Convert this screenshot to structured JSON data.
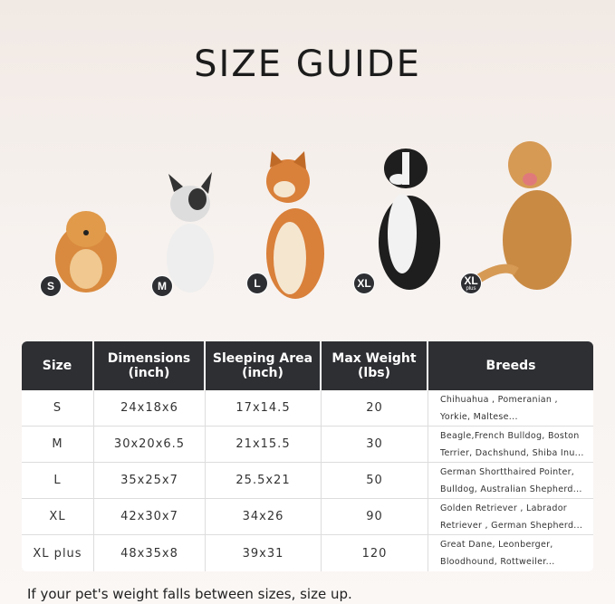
{
  "title": "SIZE GUIDE",
  "badges": [
    {
      "label": "S"
    },
    {
      "label": "M"
    },
    {
      "label": "L"
    },
    {
      "label": "XL"
    },
    {
      "label": "XL",
      "sub": "plus"
    }
  ],
  "table": {
    "headers": [
      {
        "l1": "Size",
        "l2": ""
      },
      {
        "l1": "Dimensions",
        "l2": "(inch)"
      },
      {
        "l1": "Sleeping Area",
        "l2": "(inch)"
      },
      {
        "l1": "Max Weight",
        "l2": "(lbs)"
      },
      {
        "l1": "Breeds",
        "l2": ""
      }
    ],
    "rows": [
      {
        "size": "S",
        "dim": "24x18x6",
        "area": "17x14.5",
        "weight": "20",
        "breeds1": "Chihuahua , Pomeranian ,",
        "breeds2": "Yorkie, Maltese..."
      },
      {
        "size": "M",
        "dim": "30x20x6.5",
        "area": "21x15.5",
        "weight": "30",
        "breeds1": "Beagle,French Bulldog, Boston",
        "breeds2": "Terrier, Dachshund, Shiba Inu..."
      },
      {
        "size": "L",
        "dim": "35x25x7",
        "area": "25.5x21",
        "weight": "50",
        "breeds1": "German Shortthaired Pointer,",
        "breeds2": "Bulldog, Australian Shepherd..."
      },
      {
        "size": "XL",
        "dim": "42x30x7",
        "area": "34x26",
        "weight": "90",
        "breeds1": "Golden Retriever , Labrador",
        "breeds2": "Retriever , German Shepherd..."
      },
      {
        "size": "XL plus",
        "dim": "48x35x8",
        "area": "39x31",
        "weight": "120",
        "breeds1": "Great Dane, Leonberger,",
        "breeds2": "Bloodhound, Rottweiler..."
      }
    ]
  },
  "note": "If your pet's weight falls between sizes, size up.",
  "colors": {
    "header": "#2e2f33"
  }
}
